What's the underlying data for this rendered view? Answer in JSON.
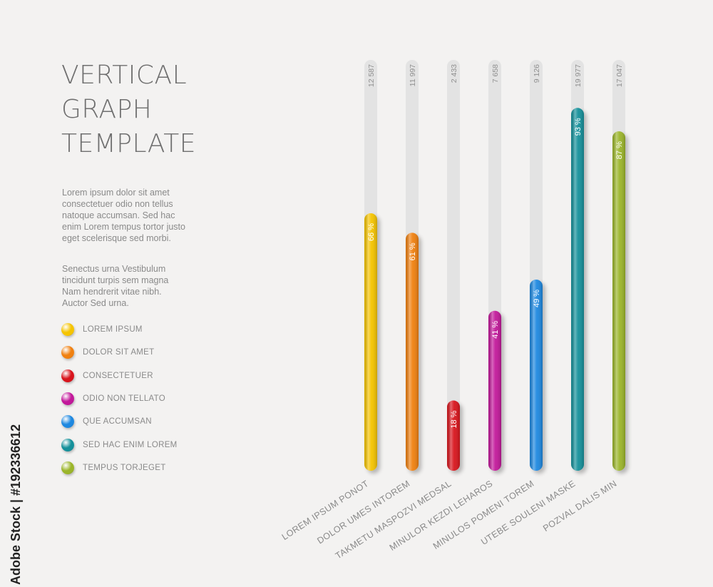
{
  "title_lines": [
    "VERTICAL",
    "GRAPH",
    "TEMPLATE"
  ],
  "paragraph1": "Lorem ipsum dolor sit amet consectetuer odio non tellus natoque accumsan. Sed hac enim Lorem tempus tortor justo eget scelerisque sed morbi.",
  "paragraph2": "Senectus urna Vestibulum tincidunt turpis sem magna Nam hendrerit vitae nibh. Auctor Sed urna.",
  "legend": [
    {
      "label": "LOREM IPSUM",
      "color": "#f5c400"
    },
    {
      "label": "DOLOR SIT AMET",
      "color": "#f08010"
    },
    {
      "label": "CONSECTETUER",
      "color": "#d8141c"
    },
    {
      "label": "ODIO NON TELLATO",
      "color": "#c2189a"
    },
    {
      "label": "QUE ACCUMSAN",
      "color": "#1e88e0"
    },
    {
      "label": "SED HAC ENIM LOREM",
      "color": "#15909a"
    },
    {
      "label": "TEMPUS TORJEGET",
      "color": "#9bb52a"
    }
  ],
  "credit": "Adobe Stock | #192336612",
  "chart_data": {
    "type": "bar",
    "orientation": "vertical",
    "categories": [
      "LOREM IPSUM PONOT",
      "DOLOR UMES INTOREM",
      "TAKMETU MASPOZVI MEDSAL",
      "MINULOR KEZDI LEHAROS",
      "MINULOS POMENI TOREM",
      "UTEBE SOULENI MASKE",
      "POZVAL DALIS MIN"
    ],
    "top_labels": [
      "12 587",
      "11 997",
      "2 433",
      "7 658",
      "9 126",
      "19 977",
      "17 047"
    ],
    "values": [
      66,
      61,
      18,
      41,
      49,
      93,
      87
    ],
    "value_labels": [
      "66 %",
      "61 %",
      "18 %",
      "41 %",
      "49 %",
      "93 %",
      "87 %"
    ],
    "colors": [
      "#f5c400",
      "#f08010",
      "#d8141c",
      "#c2189a",
      "#1e88e0",
      "#15909a",
      "#9bb52a"
    ],
    "ylim": [
      0,
      100
    ],
    "grid": false,
    "legend_position": "left"
  }
}
